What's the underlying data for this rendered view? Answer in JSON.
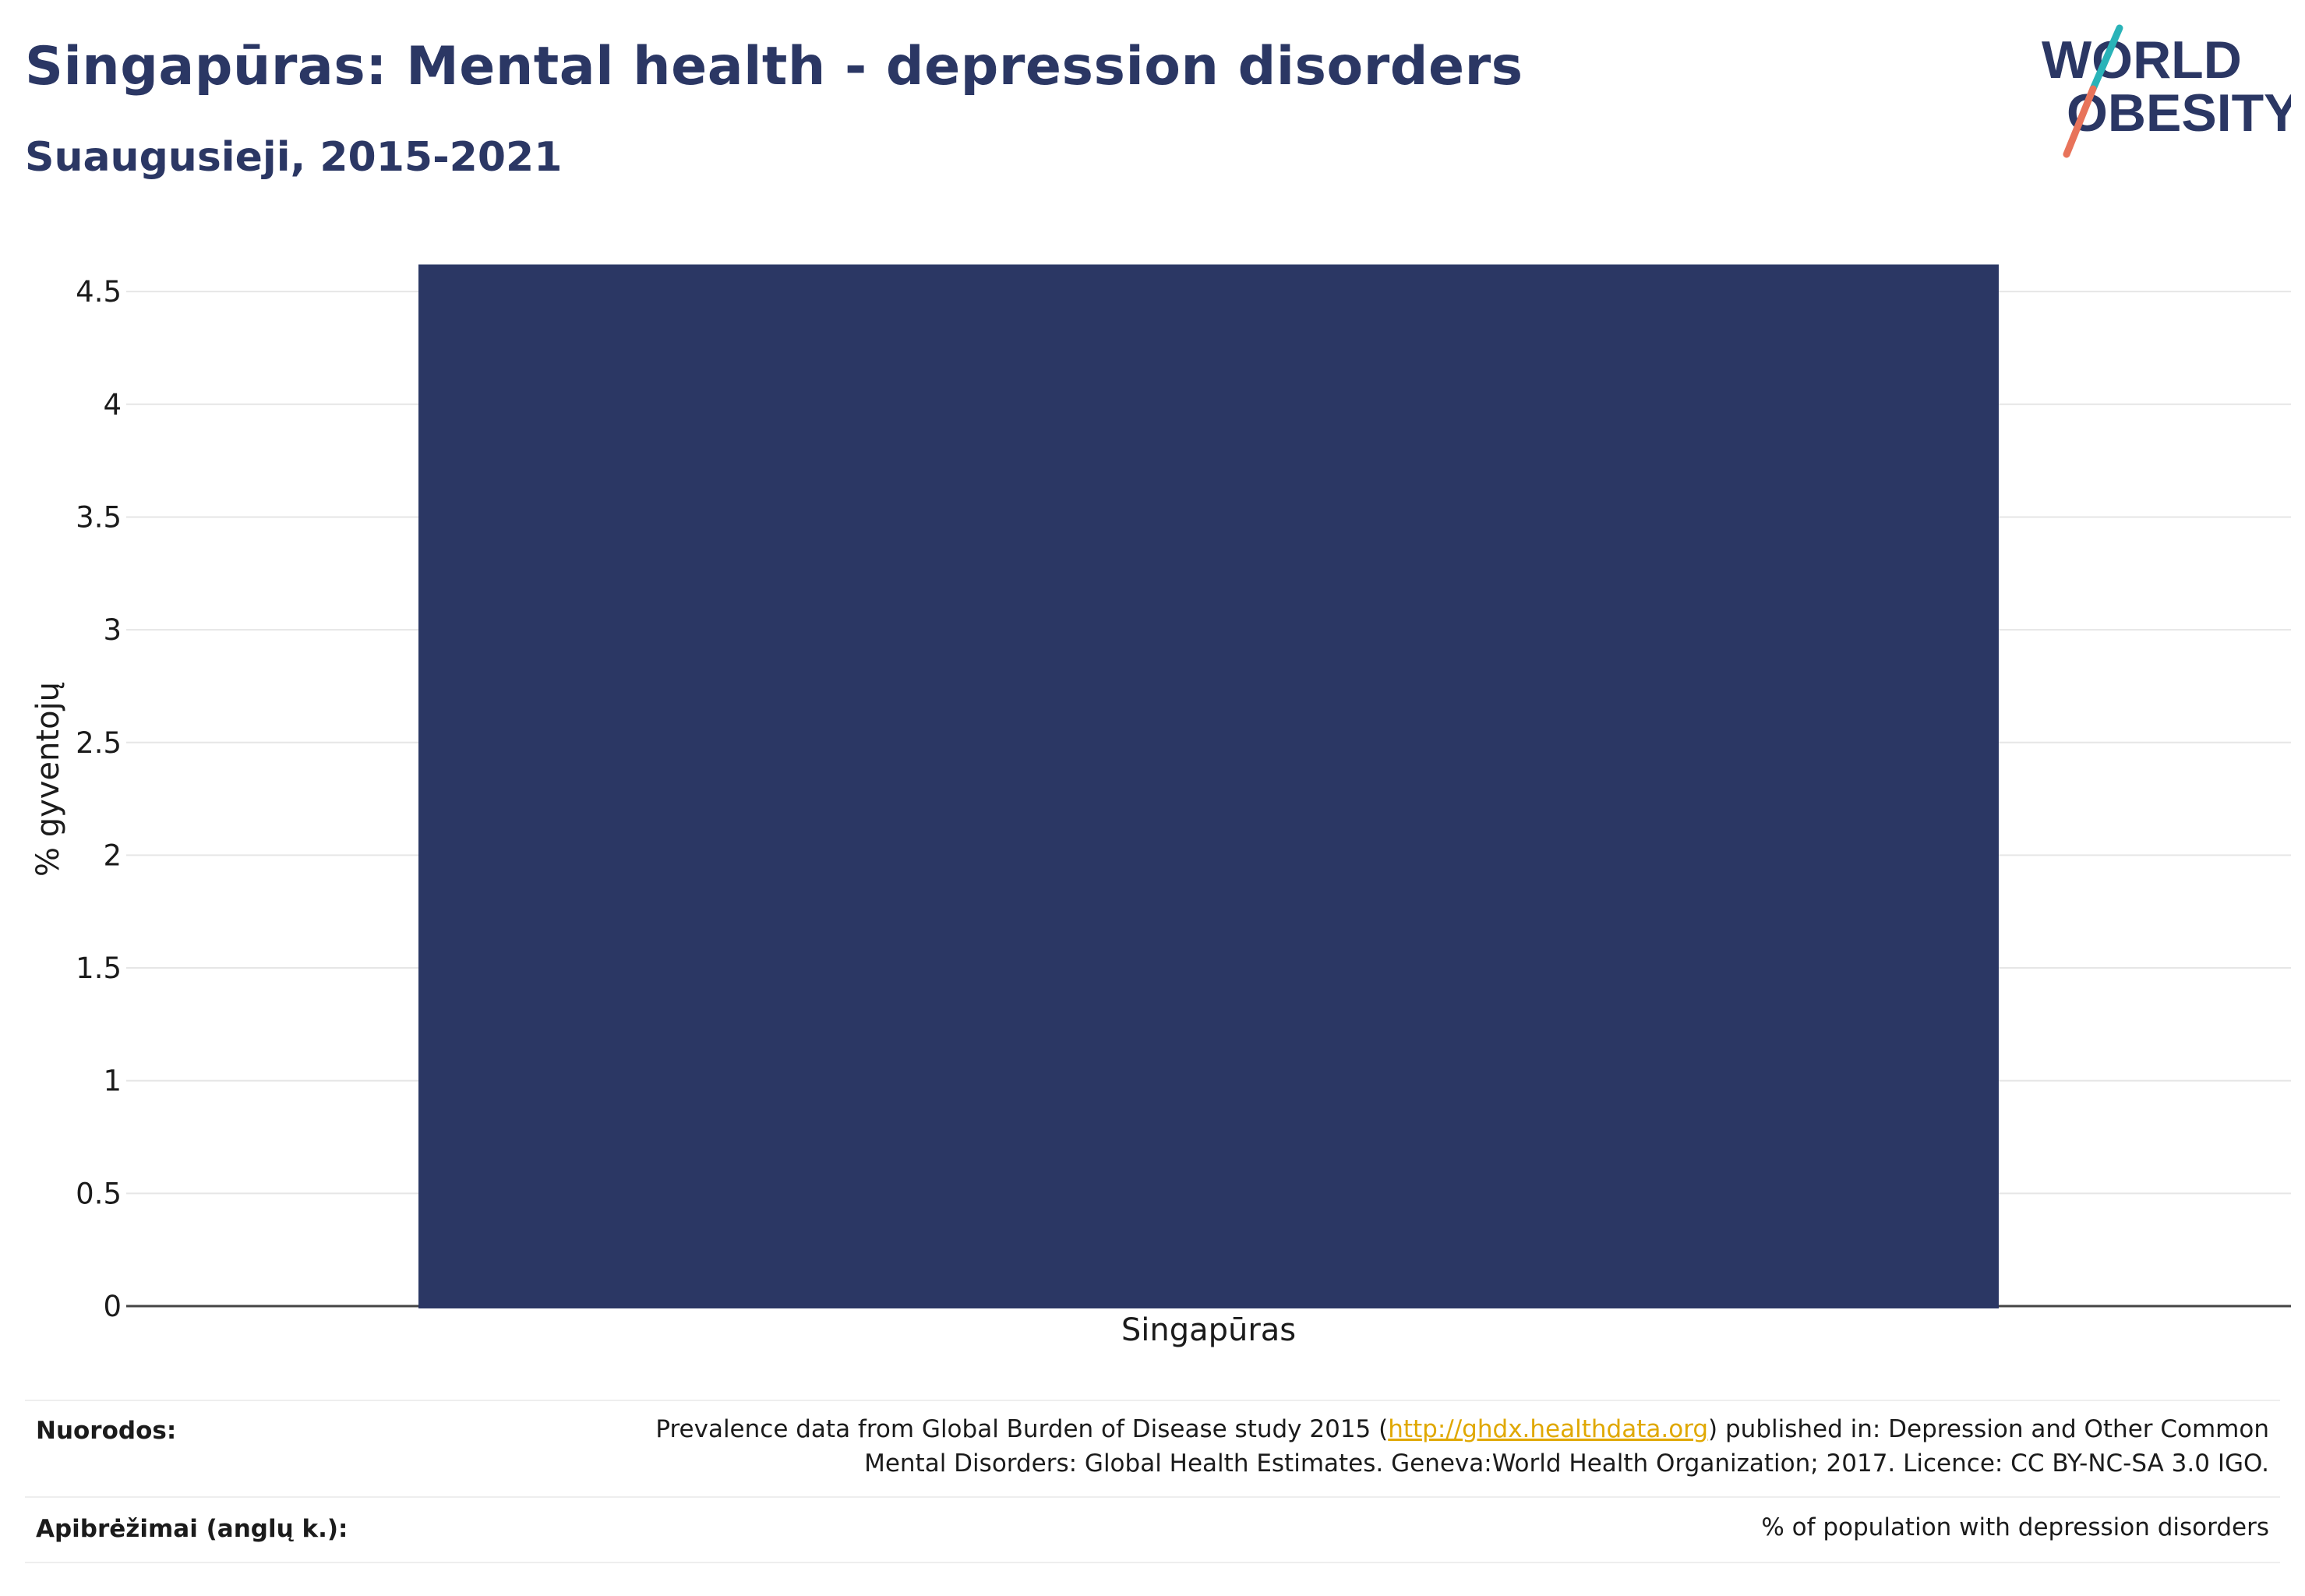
{
  "header": {
    "title": "Singapūras: Mental health - depression disorders",
    "subtitle": "Suaugusieji, 2015-2021"
  },
  "logo": {
    "line1": "WORLD",
    "line2": "OBESITY",
    "colors": {
      "text": "#2b3764",
      "slash_top": "#2ab3b8",
      "slash_bottom": "#e8735a"
    }
  },
  "chart_data": {
    "type": "bar",
    "categories": [
      "Singapūras"
    ],
    "values": [
      4.62
    ],
    "ylabel": "% gyventojų",
    "xlabel": "",
    "ylim": [
      0,
      4.6
    ],
    "yticks": [
      "0",
      "0.5",
      "1",
      "1.5",
      "2",
      "2.5",
      "3",
      "3.5",
      "4",
      "4.5"
    ],
    "grid": true,
    "bar_color": "#2b3764"
  },
  "footer": {
    "sources_label": "Nuorodos:",
    "sources_text_before": "Prevalence data from Global Burden of Disease study 2015 (",
    "sources_link": "http://ghdx.healthdata.org",
    "sources_text_after": ") published in: Depression and Other Common",
    "sources_line2": "Mental Disorders: Global Health Estimates. Geneva:World Health Organization; 2017. Licence: CC BY-NC-SA 3.0 IGO.",
    "definitions_label": "Apibrėžimai (anglų k.):",
    "definitions_text": "% of population with depression disorders"
  }
}
